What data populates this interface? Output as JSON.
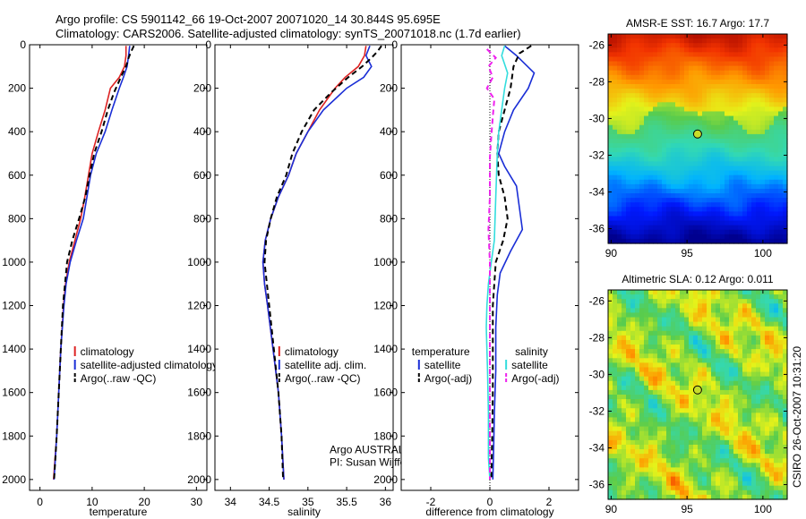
{
  "header": {
    "line1": "Argo profile: CS 5901142_66 19-Oct-2007 20071020_14 30.844S 95.695E",
    "line2": "Climatology: CARS2006. Satellite-adjusted climatology: synTS_20071018.nc (1.7d earlier)"
  },
  "side_label": "CSIRO 26-Oct-2007 10:31:20",
  "colors": {
    "climatology": "#dd2222",
    "satellite": "#1a2ed6",
    "argo": "#000000",
    "salinity_satellite": "#33dddd",
    "salinity_argo": "#ee22ee",
    "marker": "#c8dc2a"
  },
  "chart_data": [
    {
      "id": "temperature",
      "type": "line",
      "xlabel": "temperature",
      "ylabel": "",
      "xlim": [
        -2,
        32
      ],
      "ylim": [
        2050,
        0
      ],
      "x_ticks": [
        0,
        10,
        20,
        30
      ],
      "y_ticks": [
        0,
        200,
        400,
        600,
        800,
        1000,
        1200,
        1400,
        1600,
        1800,
        2000
      ],
      "legend": {
        "placement": "lower-right",
        "items": [
          "climatology",
          "satellite-adjusted climatology",
          "Argo(..raw -QC)"
        ]
      },
      "series": [
        {
          "name": "climatology",
          "color_key": "climatology",
          "dash": false,
          "points": [
            [
              16.5,
              5
            ],
            [
              16.5,
              50
            ],
            [
              16.2,
              100
            ],
            [
              15.2,
              150
            ],
            [
              13.5,
              200
            ],
            [
              12.5,
              300
            ],
            [
              11.2,
              400
            ],
            [
              10.0,
              500
            ],
            [
              9.3,
              600
            ],
            [
              8.6,
              700
            ],
            [
              7.8,
              800
            ],
            [
              6.7,
              900
            ],
            [
              5.6,
              1000
            ],
            [
              4.9,
              1100
            ],
            [
              4.5,
              1200
            ],
            [
              4.0,
              1400
            ],
            [
              3.6,
              1600
            ],
            [
              3.2,
              1800
            ],
            [
              2.6,
              2000
            ]
          ]
        },
        {
          "name": "satellite-adjusted climatology",
          "color_key": "satellite",
          "dash": false,
          "points": [
            [
              17.2,
              5
            ],
            [
              17.0,
              50
            ],
            [
              16.7,
              100
            ],
            [
              16.0,
              150
            ],
            [
              15.2,
              200
            ],
            [
              13.8,
              300
            ],
            [
              12.5,
              400
            ],
            [
              10.8,
              500
            ],
            [
              9.7,
              600
            ],
            [
              9.0,
              700
            ],
            [
              8.3,
              800
            ],
            [
              7.0,
              900
            ],
            [
              5.8,
              1000
            ],
            [
              5.0,
              1100
            ],
            [
              4.6,
              1200
            ],
            [
              4.0,
              1400
            ],
            [
              3.6,
              1600
            ],
            [
              3.2,
              1800
            ],
            [
              2.7,
              2000
            ]
          ]
        },
        {
          "name": "Argo(..raw -QC)",
          "color_key": "argo",
          "dash": true,
          "points": [
            [
              18.0,
              5
            ],
            [
              17.5,
              30
            ],
            [
              17.0,
              60
            ],
            [
              16.5,
              100
            ],
            [
              15.5,
              150
            ],
            [
              14.2,
              220
            ],
            [
              13.0,
              300
            ],
            [
              11.8,
              400
            ],
            [
              10.4,
              500
            ],
            [
              9.5,
              600
            ],
            [
              8.7,
              700
            ],
            [
              7.5,
              800
            ],
            [
              6.2,
              900
            ],
            [
              5.2,
              1000
            ],
            [
              4.8,
              1100
            ],
            [
              4.4,
              1200
            ],
            [
              4.0,
              1400
            ],
            [
              3.6,
              1600
            ],
            [
              3.2,
              1800
            ],
            [
              2.7,
              2000
            ]
          ]
        }
      ]
    },
    {
      "id": "salinity",
      "type": "line",
      "xlabel": "salinity",
      "ylabel": "",
      "xlim": [
        33.8,
        36.1
      ],
      "ylim": [
        2050,
        0
      ],
      "x_ticks": [
        34,
        34.5,
        35,
        35.5,
        36
      ],
      "x_tick_labels": [
        "34",
        "34.5",
        "35",
        "35.5",
        "36"
      ],
      "y_ticks": [
        0,
        200,
        400,
        600,
        800,
        1000,
        1200,
        1400,
        1600,
        1800,
        2000
      ],
      "legend": {
        "placement": "lower-right",
        "items": [
          "climatology",
          "satellite adj. clim.",
          "Argo(..raw -QC)"
        ]
      },
      "annotations": [
        "Argo AUSTRALIA",
        "PI: Susan Wijffels"
      ],
      "series": [
        {
          "name": "climatology",
          "color_key": "climatology",
          "dash": false,
          "points": [
            [
              35.75,
              5
            ],
            [
              35.73,
              50
            ],
            [
              35.65,
              100
            ],
            [
              35.48,
              150
            ],
            [
              35.35,
              200
            ],
            [
              35.15,
              300
            ],
            [
              35.0,
              400
            ],
            [
              34.85,
              500
            ],
            [
              34.75,
              600
            ],
            [
              34.62,
              700
            ],
            [
              34.52,
              800
            ],
            [
              34.45,
              900
            ],
            [
              34.42,
              1000
            ],
            [
              34.44,
              1100
            ],
            [
              34.48,
              1200
            ],
            [
              34.55,
              1400
            ],
            [
              34.62,
              1600
            ],
            [
              34.66,
              1800
            ],
            [
              34.69,
              2000
            ]
          ]
        },
        {
          "name": "satellite adj. clim.",
          "color_key": "satellite",
          "dash": false,
          "points": [
            [
              35.8,
              5
            ],
            [
              35.75,
              50
            ],
            [
              35.82,
              100
            ],
            [
              35.72,
              150
            ],
            [
              35.5,
              200
            ],
            [
              35.2,
              300
            ],
            [
              35.0,
              400
            ],
            [
              34.85,
              500
            ],
            [
              34.75,
              600
            ],
            [
              34.62,
              700
            ],
            [
              34.52,
              800
            ],
            [
              34.45,
              900
            ],
            [
              34.42,
              1000
            ],
            [
              34.44,
              1100
            ],
            [
              34.48,
              1200
            ],
            [
              34.55,
              1400
            ],
            [
              34.62,
              1600
            ],
            [
              34.66,
              1800
            ],
            [
              34.69,
              2000
            ]
          ]
        },
        {
          "name": "Argo(..raw -QC)",
          "color_key": "argo",
          "dash": true,
          "points": [
            [
              35.95,
              5
            ],
            [
              35.9,
              30
            ],
            [
              35.82,
              60
            ],
            [
              35.7,
              100
            ],
            [
              35.52,
              150
            ],
            [
              35.3,
              220
            ],
            [
              35.08,
              300
            ],
            [
              34.92,
              400
            ],
            [
              34.8,
              500
            ],
            [
              34.72,
              600
            ],
            [
              34.6,
              700
            ],
            [
              34.52,
              800
            ],
            [
              34.46,
              900
            ],
            [
              34.44,
              1000
            ],
            [
              34.47,
              1100
            ],
            [
              34.5,
              1200
            ],
            [
              34.56,
              1400
            ],
            [
              34.62,
              1600
            ],
            [
              34.66,
              1800
            ],
            [
              34.68,
              2000
            ]
          ]
        }
      ]
    },
    {
      "id": "difference",
      "type": "line",
      "xlabel": "difference from climatology",
      "ylabel": "",
      "xlim": [
        -3,
        3
      ],
      "ylim": [
        2050,
        0
      ],
      "x_ticks": [
        -2,
        0,
        2
      ],
      "y_ticks": [
        0,
        200,
        400,
        600,
        800,
        1000,
        1200,
        1400,
        1600,
        1800,
        2000
      ],
      "legend": {
        "placement": "lower-right",
        "groups": [
          {
            "title": "temperature",
            "items": [
              "satellite",
              "Argo(-adj)"
            ]
          },
          {
            "title": "salinity",
            "items": [
              "satellite",
              "Argo(-adj)"
            ]
          }
        ]
      },
      "series": [
        {
          "name": "temperature satellite",
          "color_key": "satellite",
          "dash": false,
          "points": [
            [
              0.5,
              5
            ],
            [
              0.9,
              50
            ],
            [
              1.5,
              130
            ],
            [
              1.3,
              200
            ],
            [
              0.8,
              300
            ],
            [
              0.5,
              400
            ],
            [
              0.3,
              500
            ],
            [
              0.5,
              560
            ],
            [
              0.9,
              650
            ],
            [
              1.0,
              750
            ],
            [
              1.1,
              850
            ],
            [
              0.7,
              950
            ],
            [
              0.35,
              1050
            ],
            [
              0.25,
              1150
            ],
            [
              0.2,
              1300
            ],
            [
              0.2,
              1500
            ],
            [
              0.15,
              1700
            ],
            [
              0.12,
              1900
            ],
            [
              0.1,
              2000
            ]
          ]
        },
        {
          "name": "temperature Argo(-adj)",
          "color_key": "argo",
          "dash": true,
          "points": [
            [
              1.4,
              5
            ],
            [
              1.0,
              40
            ],
            [
              0.8,
              100
            ],
            [
              0.7,
              200
            ],
            [
              0.5,
              300
            ],
            [
              0.3,
              400
            ],
            [
              0.25,
              500
            ],
            [
              0.3,
              600
            ],
            [
              0.5,
              700
            ],
            [
              0.6,
              800
            ],
            [
              0.45,
              900
            ],
            [
              0.2,
              1000
            ],
            [
              0.1,
              1200
            ],
            [
              0.1,
              1400
            ],
            [
              0.1,
              1600
            ],
            [
              0.08,
              1800
            ],
            [
              0.05,
              2000
            ]
          ]
        },
        {
          "name": "salinity satellite",
          "color_key": "salinity_satellite",
          "dash": false,
          "points": [
            [
              0.5,
              5
            ],
            [
              0.4,
              50
            ],
            [
              0.6,
              130
            ],
            [
              0.5,
              200
            ],
            [
              0.4,
              300
            ],
            [
              0.3,
              400
            ],
            [
              0.25,
              500
            ],
            [
              0.2,
              700
            ],
            [
              0.15,
              900
            ],
            [
              0.05,
              1000
            ],
            [
              -0.05,
              1100
            ],
            [
              -0.1,
              1200
            ],
            [
              -0.12,
              1300
            ],
            [
              -0.08,
              1500
            ],
            [
              -0.05,
              1700
            ],
            [
              -0.05,
              1900
            ],
            [
              0.0,
              2000
            ]
          ]
        },
        {
          "name": "salinity Argo(-adj)",
          "color_key": "salinity_argo",
          "dash": true,
          "points": [
            [
              -0.1,
              20
            ],
            [
              0.2,
              60
            ],
            [
              -0.05,
              100
            ],
            [
              0.1,
              150
            ],
            [
              -0.1,
              200
            ],
            [
              0.15,
              250
            ],
            [
              0.1,
              330
            ],
            [
              0.05,
              420
            ],
            [
              0.0,
              520
            ],
            [
              0.0,
              700
            ],
            [
              -0.05,
              850
            ],
            [
              0.0,
              1000
            ],
            [
              0.0,
              1200
            ],
            [
              0.0,
              1500
            ],
            [
              0.0,
              1800
            ],
            [
              0.0,
              2000
            ]
          ]
        }
      ]
    },
    {
      "id": "sst",
      "type": "heatmap",
      "title": "AMSR-E SST: 16.7 Argo: 17.7",
      "xlim": [
        89.8,
        101.6
      ],
      "ylim": [
        -36.8,
        -25.4
      ],
      "x_ticks": [
        90,
        95,
        100
      ],
      "y_ticks": [
        -26,
        -28,
        -30,
        -32,
        -34,
        -36
      ],
      "marker": {
        "lon": 95.695,
        "lat": -30.844
      }
    },
    {
      "id": "sla",
      "type": "heatmap",
      "title": "Altimetric SLA: 0.12 Argo: 0.011",
      "xlim": [
        89.8,
        101.6
      ],
      "ylim": [
        -36.8,
        -25.4
      ],
      "x_ticks": [
        90,
        95,
        100
      ],
      "y_ticks": [
        -26,
        -28,
        -30,
        -32,
        -34,
        -36
      ],
      "marker": {
        "lon": 95.695,
        "lat": -30.844
      }
    }
  ]
}
